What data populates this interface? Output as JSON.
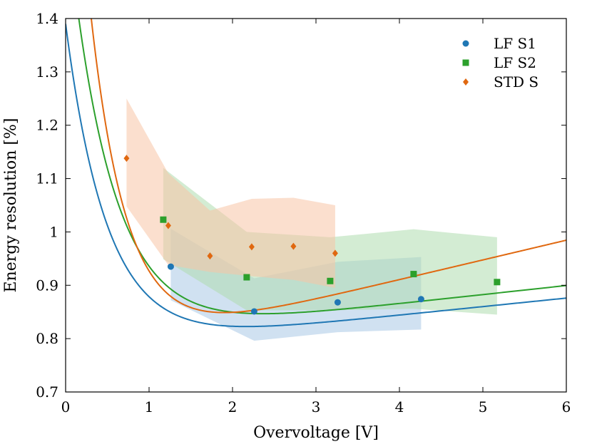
{
  "chart_data": {
    "type": "scatter",
    "title": "",
    "xlabel": "Overvoltage [V]",
    "ylabel": "Energy resolution [%]",
    "xlim": [
      0,
      6
    ],
    "ylim": [
      0.7,
      1.4
    ],
    "xticks": [
      0,
      1,
      2,
      3,
      4,
      5,
      6
    ],
    "xtick_labels": [
      "0",
      "1",
      "2",
      "3",
      "4",
      "5",
      "6"
    ],
    "yticks": [
      0.7,
      0.8,
      0.9,
      1.0,
      1.1,
      1.2,
      1.3,
      1.4
    ],
    "ytick_labels": [
      "0.7",
      "0.8",
      "0.9",
      "1",
      "1.1",
      "1.2",
      "1.3",
      "1.4"
    ],
    "grid": false,
    "legend_position": "top-right",
    "series": [
      {
        "name": "LF S1",
        "marker": "circle",
        "color": "#1f77b4",
        "band_color": "#a9c9e6",
        "x": [
          1.26,
          2.26,
          3.26,
          4.26
        ],
        "y": [
          0.935,
          0.851,
          0.868,
          0.874
        ],
        "band": {
          "x": [
            1.26,
            2.26,
            3.26,
            4.26
          ],
          "lower": [
            0.872,
            0.796,
            0.812,
            0.817
          ],
          "upper": [
            1.006,
            0.913,
            0.944,
            0.953
          ]
        },
        "fit": {
          "A": 0.61,
          "k": 2.0,
          "c": 0.82,
          "d": 0.016
        }
      },
      {
        "name": "LF S2",
        "marker": "square",
        "color": "#2ca02c",
        "band_color": "#aedcae",
        "x": [
          1.17,
          2.17,
          3.17,
          4.17,
          5.17
        ],
        "y": [
          1.023,
          0.915,
          0.908,
          0.921,
          0.906
        ],
        "band": {
          "x": [
            1.17,
            2.17,
            3.17,
            4.17,
            5.17
          ],
          "lower": [
            0.949,
            0.853,
            0.853,
            0.856,
            0.845
          ],
          "upper": [
            1.12,
            1.0,
            0.99,
            1.005,
            0.99
          ]
        },
        "fit": {
          "A": 0.81,
          "k": 1.9,
          "c": 0.84,
          "d": 0.017
        }
      },
      {
        "name": "STD S",
        "marker": "diamond",
        "color": "#e06810",
        "band_color": "#f7c4a6",
        "x": [
          0.73,
          1.23,
          1.73,
          2.23,
          2.73,
          3.23
        ],
        "y": [
          1.138,
          1.012,
          0.955,
          0.972,
          0.973,
          0.96
        ],
        "band": {
          "x": [
            0.73,
            1.23,
            1.73,
            2.23,
            2.73,
            3.23
          ],
          "lower": [
            1.048,
            0.938,
            0.925,
            0.917,
            0.91,
            0.895
          ],
          "upper": [
            1.25,
            1.11,
            1.04,
            1.062,
            1.064,
            1.05
          ]
        },
        "fit": {
          "A": 1.27,
          "k": 2.3,
          "c": 0.855,
          "d": 0.037
        }
      }
    ]
  }
}
